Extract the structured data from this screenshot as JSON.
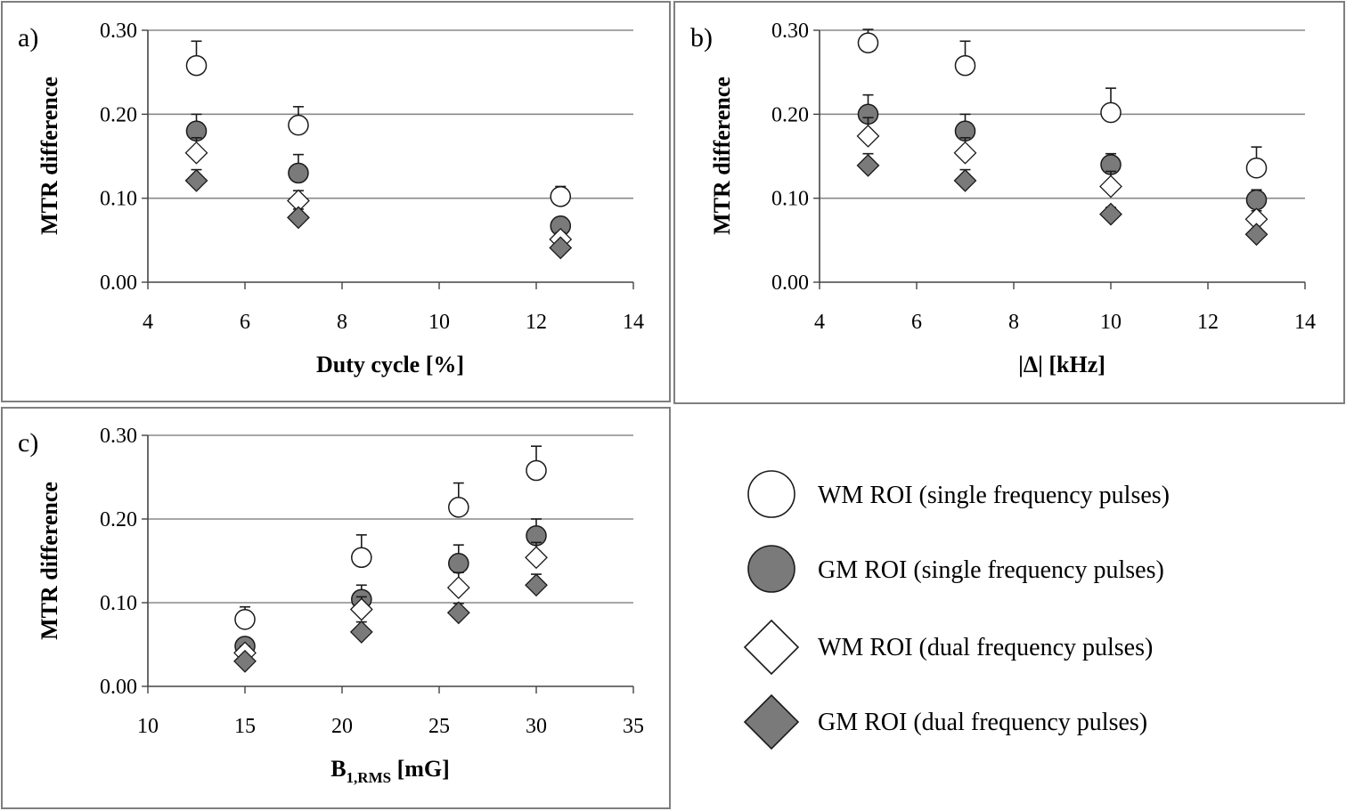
{
  "colors": {
    "wm": "#ffffff",
    "gm": "#7a7a7a",
    "stroke": "#1a1a1a",
    "grid": "#888888",
    "frame": "#7f7f7f"
  },
  "legend": {
    "items": [
      {
        "label": "WM ROI (single frequency pulses)",
        "marker": "circle",
        "fill": "wm"
      },
      {
        "label": "GM ROI (single frequency pulses)",
        "marker": "circle",
        "fill": "gm"
      },
      {
        "label": "WM ROI (dual frequency pulses)",
        "marker": "diamond",
        "fill": "wm"
      },
      {
        "label": "GM ROI (dual frequency pulses)",
        "marker": "diamond",
        "fill": "gm"
      }
    ]
  },
  "chart_data": [
    {
      "type": "scatter",
      "panel_label": "a)",
      "xlabel": "Duty cycle [%]",
      "ylabel": "MTR difference",
      "xlim": [
        4,
        14
      ],
      "xticks": [
        "4",
        "6",
        "8",
        "10",
        "12",
        "14"
      ],
      "ylim": [
        0,
        0.3
      ],
      "yticks": [
        "0.00",
        "0.10",
        "0.20",
        "0.30"
      ],
      "x": [
        5,
        7.1,
        12.5
      ],
      "series": [
        {
          "name": "WM ROI (single frequency pulses)",
          "values": [
            0.258,
            0.187,
            0.102
          ],
          "errors": [
            0.029,
            0.022,
            0.012
          ]
        },
        {
          "name": "GM ROI (single frequency pulses)",
          "values": [
            0.18,
            0.13,
            0.067
          ],
          "errors": [
            0.02,
            0.022,
            0.01
          ]
        },
        {
          "name": "WM ROI (dual frequency pulses)",
          "values": [
            0.154,
            0.097,
            0.051
          ],
          "errors": [
            0.018,
            0.012,
            0.008
          ]
        },
        {
          "name": "GM ROI (dual frequency pulses)",
          "values": [
            0.121,
            0.077,
            0.041
          ],
          "errors": [
            0.013,
            0.01,
            0.006
          ]
        }
      ]
    },
    {
      "type": "scatter",
      "panel_label": "b)",
      "xlabel": "|Δ| [kHz]",
      "ylabel": "MTR difference",
      "xlim": [
        4,
        14
      ],
      "xticks": [
        "4",
        "6",
        "8",
        "10",
        "12",
        "14"
      ],
      "ylim": [
        0,
        0.3
      ],
      "yticks": [
        "0.00",
        "0.10",
        "0.20",
        "0.30"
      ],
      "x": [
        5,
        7,
        10,
        13
      ],
      "series": [
        {
          "name": "WM ROI (single frequency pulses)",
          "values": [
            0.285,
            0.258,
            0.202,
            0.136
          ],
          "errors": [
            0.016,
            0.029,
            0.029,
            0.025
          ]
        },
        {
          "name": "GM ROI (single frequency pulses)",
          "values": [
            0.2,
            0.18,
            0.14,
            0.098
          ],
          "errors": [
            0.023,
            0.02,
            0.013,
            0.012
          ]
        },
        {
          "name": "WM ROI (dual frequency pulses)",
          "values": [
            0.174,
            0.154,
            0.114,
            0.075
          ],
          "errors": [
            0.022,
            0.018,
            0.018,
            0.01
          ]
        },
        {
          "name": "GM ROI (dual frequency pulses)",
          "values": [
            0.139,
            0.121,
            0.081,
            0.057
          ],
          "errors": [
            0.014,
            0.013,
            0.008,
            0.007
          ]
        }
      ]
    },
    {
      "type": "scatter",
      "panel_label": "c)",
      "xlabel": "B",
      "xlabel_subscript": "1,RMS",
      "xlabel_unit": " [mG]",
      "ylabel": "MTR difference",
      "xlim": [
        10,
        35
      ],
      "xticks": [
        "10",
        "15",
        "20",
        "25",
        "30",
        "35"
      ],
      "ylim": [
        0,
        0.3
      ],
      "yticks": [
        "0.00",
        "0.10",
        "0.20",
        "0.30"
      ],
      "x": [
        15,
        21,
        26,
        30
      ],
      "series": [
        {
          "name": "WM ROI (single frequency pulses)",
          "values": [
            0.08,
            0.154,
            0.214,
            0.258
          ],
          "errors": [
            0.015,
            0.027,
            0.029,
            0.029
          ]
        },
        {
          "name": "GM ROI (single frequency pulses)",
          "values": [
            0.048,
            0.104,
            0.147,
            0.18
          ],
          "errors": [
            0.01,
            0.017,
            0.022,
            0.02
          ]
        },
        {
          "name": "WM ROI (dual frequency pulses)",
          "values": [
            0.04,
            0.092,
            0.118,
            0.154
          ],
          "errors": [
            0.008,
            0.015,
            0.018,
            0.018
          ]
        },
        {
          "name": "GM ROI (dual frequency pulses)",
          "values": [
            0.03,
            0.065,
            0.088,
            0.121
          ],
          "errors": [
            0.006,
            0.012,
            0.011,
            0.013
          ]
        }
      ]
    }
  ]
}
